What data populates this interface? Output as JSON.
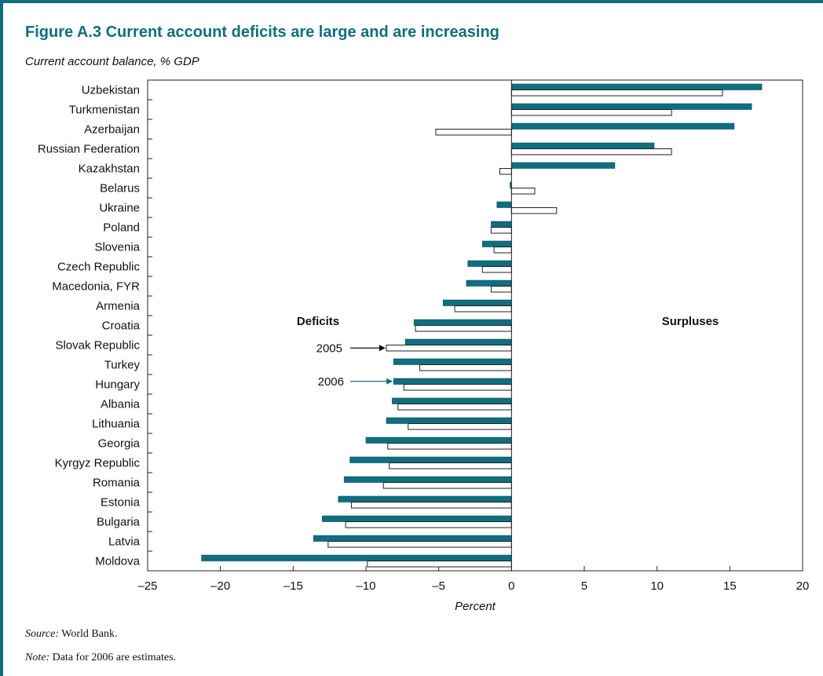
{
  "figure": {
    "title": "Figure A.3  Current account deficits are large and are increasing",
    "subtitle": "Current account balance, % GDP"
  },
  "chart_data": {
    "type": "bar",
    "orientation": "horizontal",
    "categories": [
      "Uzbekistan",
      "Turkmenistan",
      "Azerbaijan",
      "Russian Federation",
      "Kazakhstan",
      "Belarus",
      "Ukraine",
      "Poland",
      "Slovenia",
      "Czech Republic",
      "Macedonia, FYR",
      "Armenia",
      "Croatia",
      "Slovak Republic",
      "Turkey",
      "Hungary",
      "Albania",
      "Lithuania",
      "Georgia",
      "Kyrgyz Republic",
      "Romania",
      "Estonia",
      "Bulgaria",
      "Latvia",
      "Moldova"
    ],
    "series": [
      {
        "name": "2006",
        "color": "#0f6e80",
        "values": [
          17.2,
          16.5,
          15.3,
          9.8,
          7.1,
          -0.1,
          -1.0,
          -1.4,
          -2.0,
          -3.0,
          -3.1,
          -4.7,
          -6.7,
          -7.3,
          -8.1,
          -8.1,
          -8.2,
          -8.6,
          -10.0,
          -11.1,
          -11.5,
          -11.9,
          -13.0,
          -13.6,
          -21.3
        ]
      },
      {
        "name": "2005",
        "color": "#ffffff",
        "values": [
          14.5,
          11.0,
          -5.2,
          11.0,
          -0.8,
          1.6,
          3.1,
          -1.4,
          -1.2,
          -2.0,
          -1.4,
          -3.9,
          -6.6,
          -8.6,
          -6.3,
          -7.4,
          -7.8,
          -7.1,
          -8.5,
          -8.4,
          -8.8,
          -11.0,
          -11.4,
          -12.6,
          -9.9
        ]
      }
    ],
    "xlim": [
      -25,
      20
    ],
    "xticks": [
      -25,
      -20,
      -15,
      -10,
      -5,
      0,
      5,
      10,
      15,
      20
    ],
    "xticklabels": [
      "–25",
      "–20",
      "–15",
      "–10",
      "–5",
      "0",
      "5",
      "10",
      "15",
      "20"
    ],
    "xlabel": "Percent",
    "annotations": {
      "deficits": "Deficits",
      "surpluses": "Surpluses",
      "label_2005": "2005",
      "label_2006": "2006"
    },
    "grid": false,
    "legend": "none"
  },
  "footer": {
    "source_label": "Source:",
    "source_text": " World Bank.",
    "note_label": "Note:",
    "note_text": " Data for 2006 are estimates."
  }
}
